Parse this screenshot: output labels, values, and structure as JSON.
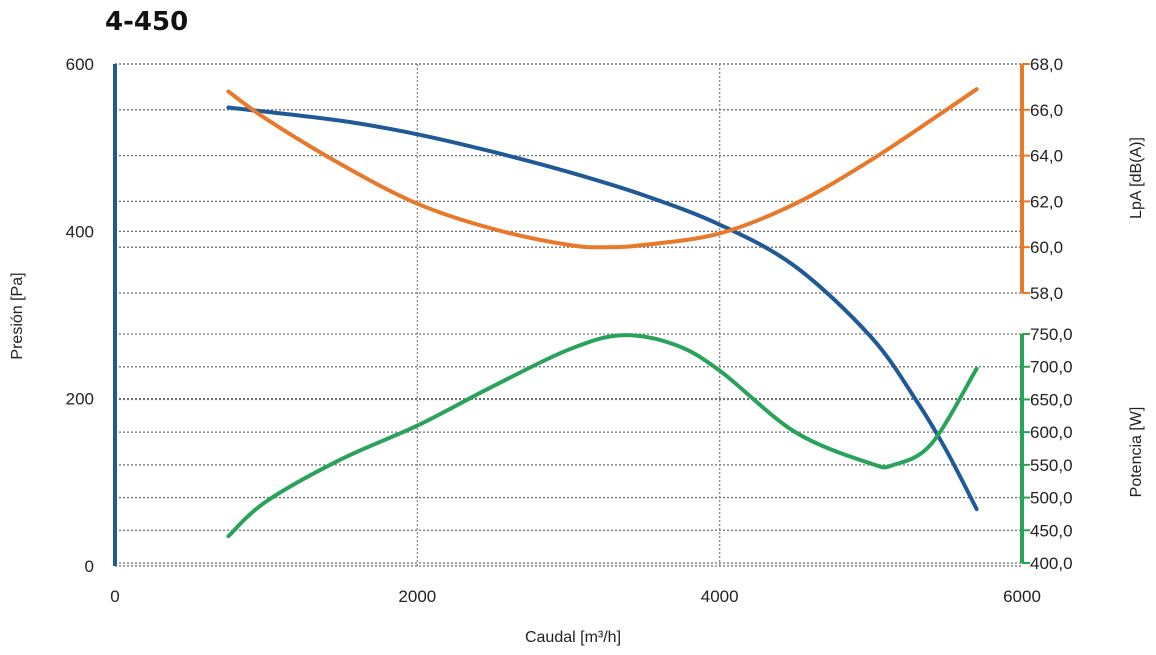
{
  "chart_data": {
    "type": "line",
    "title": "4-450",
    "xlabel": "Caudal [m³/h]",
    "xlim": [
      0,
      6000
    ],
    "x_ticks": [
      "0",
      "2000",
      "4000",
      "6000"
    ],
    "y_left": {
      "label": "Presión [Pa]",
      "ylim": [
        0,
        600
      ],
      "ticks": [
        "0",
        "200",
        "400",
        "600"
      ],
      "color": "#1f5a96"
    },
    "y_right_top": {
      "label": "LpA [dB(A)]",
      "ylim": [
        58,
        68
      ],
      "ticks": [
        "58,0",
        "60,0",
        "62,0",
        "64,0",
        "66,0",
        "68,0"
      ],
      "color": "#e8782a"
    },
    "y_right_bottom": {
      "label": "Potencia [W]",
      "ylim": [
        400,
        750
      ],
      "ticks": [
        "400,0",
        "450,0",
        "500,0",
        "550,0",
        "600,0",
        "650,0",
        "700,0",
        "750,0"
      ],
      "color": "#2aa35a"
    },
    "grid": true,
    "series": [
      {
        "axis": "left",
        "color": "#1f5a96",
        "x": [
          750,
          1500,
          2000,
          2500,
          3000,
          3500,
          4000,
          4500,
          5000,
          5300,
          5500,
          5700
        ],
        "y": [
          548,
          532,
          516,
          495,
          471,
          443,
          408,
          358,
          274,
          198,
          138,
          68
        ]
      },
      {
        "axis": "right_top",
        "color": "#e8782a",
        "x": [
          750,
          1000,
          1500,
          2000,
          2500,
          3000,
          3250,
          3500,
          4000,
          4500,
          5000,
          5500,
          5700
        ],
        "y": [
          66.8,
          65.6,
          63.6,
          61.9,
          60.8,
          60.1,
          60.0,
          60.1,
          60.6,
          61.9,
          63.8,
          66.0,
          66.9
        ]
      },
      {
        "axis": "right_bottom",
        "color": "#2aa35a",
        "x": [
          750,
          1000,
          1500,
          2000,
          2500,
          3000,
          3350,
          3700,
          4000,
          4500,
          5000,
          5150,
          5400,
          5700
        ],
        "y": [
          441,
          494,
          559,
          610,
          670,
          726,
          748,
          734,
          694,
          600,
          552,
          550,
          582,
          697
        ]
      }
    ]
  }
}
